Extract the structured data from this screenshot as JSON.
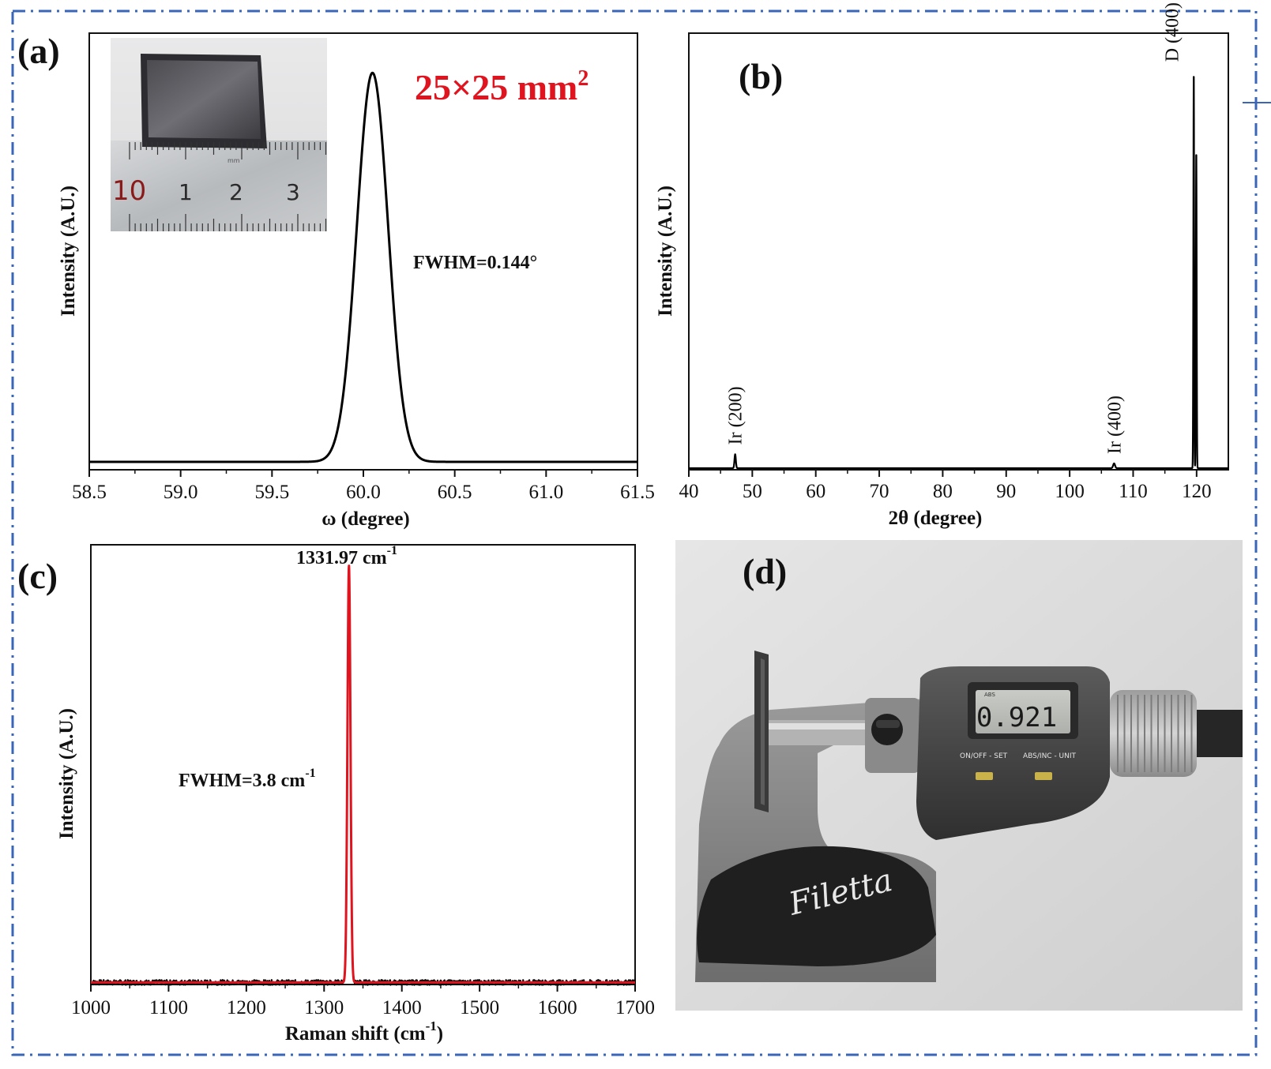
{
  "colors": {
    "frame": "#3a66b8",
    "axis": "#111111",
    "line_black": "#000000",
    "line_red": "#e0141e",
    "size_label": "#e0141e"
  },
  "icons": [
    "ruler-photo",
    "micrometer-photo"
  ],
  "chart_data": [
    {
      "panel": "(a)",
      "type": "line",
      "title": "",
      "xlabel": "ω (degree)",
      "ylabel": "Intensity (A.U.)",
      "xlim": [
        58.5,
        61.5
      ],
      "xticks": [
        "58.5",
        "59.0",
        "59.5",
        "60.0",
        "60.5",
        "61.0",
        "61.5"
      ],
      "ylim": [
        0,
        1.1
      ],
      "grid": false,
      "annotations": [
        "25×25 mm",
        "FWHM=0.144°"
      ],
      "superscript": "2",
      "series": [
        {
          "peak_x": 60.05,
          "fwhm": 0.144,
          "peak_y": 1.0,
          "baseline": 0.02
        }
      ]
    },
    {
      "panel": "(b)",
      "type": "line",
      "title": "",
      "xlabel": "2θ (degree)",
      "ylabel": "Intensity (A.U.)",
      "xlim": [
        40,
        125
      ],
      "xticks": [
        "40",
        "50",
        "60",
        "70",
        "80",
        "90",
        "100",
        "110",
        "120"
      ],
      "ylim": [
        0,
        1.1
      ],
      "grid": false,
      "peak_labels": [
        {
          "label": "Ir (200)",
          "x": 47.3,
          "y": 0.035
        },
        {
          "label": "Ir (400)",
          "x": 107.0,
          "y": 0.012
        },
        {
          "label": "D (400)",
          "x": 119.6,
          "y": 1.0
        }
      ],
      "series": [
        {
          "baseline": 0.004,
          "peaks": [
            {
              "x": 47.3,
              "y": 0.035,
              "w": 0.25
            },
            {
              "x": 107.0,
              "y": 0.012,
              "w": 0.35
            },
            {
              "x": 119.55,
              "y": 1.0,
              "w": 0.14
            },
            {
              "x": 119.95,
              "y": 0.8,
              "w": 0.14
            }
          ]
        }
      ]
    },
    {
      "panel": "(c)",
      "type": "line",
      "title": "",
      "xlabel": "Raman shift (cm",
      "xlabel_sup": "-1",
      "xlabel_end": ")",
      "ylabel": "Intensity (A.U.)",
      "xlim": [
        1000,
        1700
      ],
      "xticks": [
        "1000",
        "1100",
        "1200",
        "1300",
        "1400",
        "1500",
        "1600",
        "1700"
      ],
      "ylim": [
        0,
        1.05
      ],
      "grid": false,
      "annotations": [
        {
          "text": "1331.97 cm",
          "sup": "-1"
        },
        {
          "text": "FWHM=3.8 cm",
          "sup": "-1"
        }
      ],
      "series": [
        {
          "name": "",
          "color": "#000000",
          "kind": "measured",
          "peak_x": 1331.97,
          "fwhm": 3.8,
          "peak_y": 1.0,
          "baseline": 0.005
        },
        {
          "name": "",
          "color": "#e0141e",
          "kind": "fit",
          "peak_x": 1331.97,
          "fwhm": 3.8,
          "peak_y": 1.0,
          "baseline": 0.005
        }
      ]
    }
  ],
  "photos": {
    "d_label": "(d)",
    "micrometer_display": "0.921",
    "micrometer_badge": "ABS",
    "micrometer_btn1": "ON/OFF - SET",
    "micrometer_btn2": "ABS/INC - UNIT",
    "brand": "Filetta",
    "ruler_marks": [
      "10",
      "1",
      "2",
      "3"
    ],
    "ruler_unit": "mm"
  }
}
